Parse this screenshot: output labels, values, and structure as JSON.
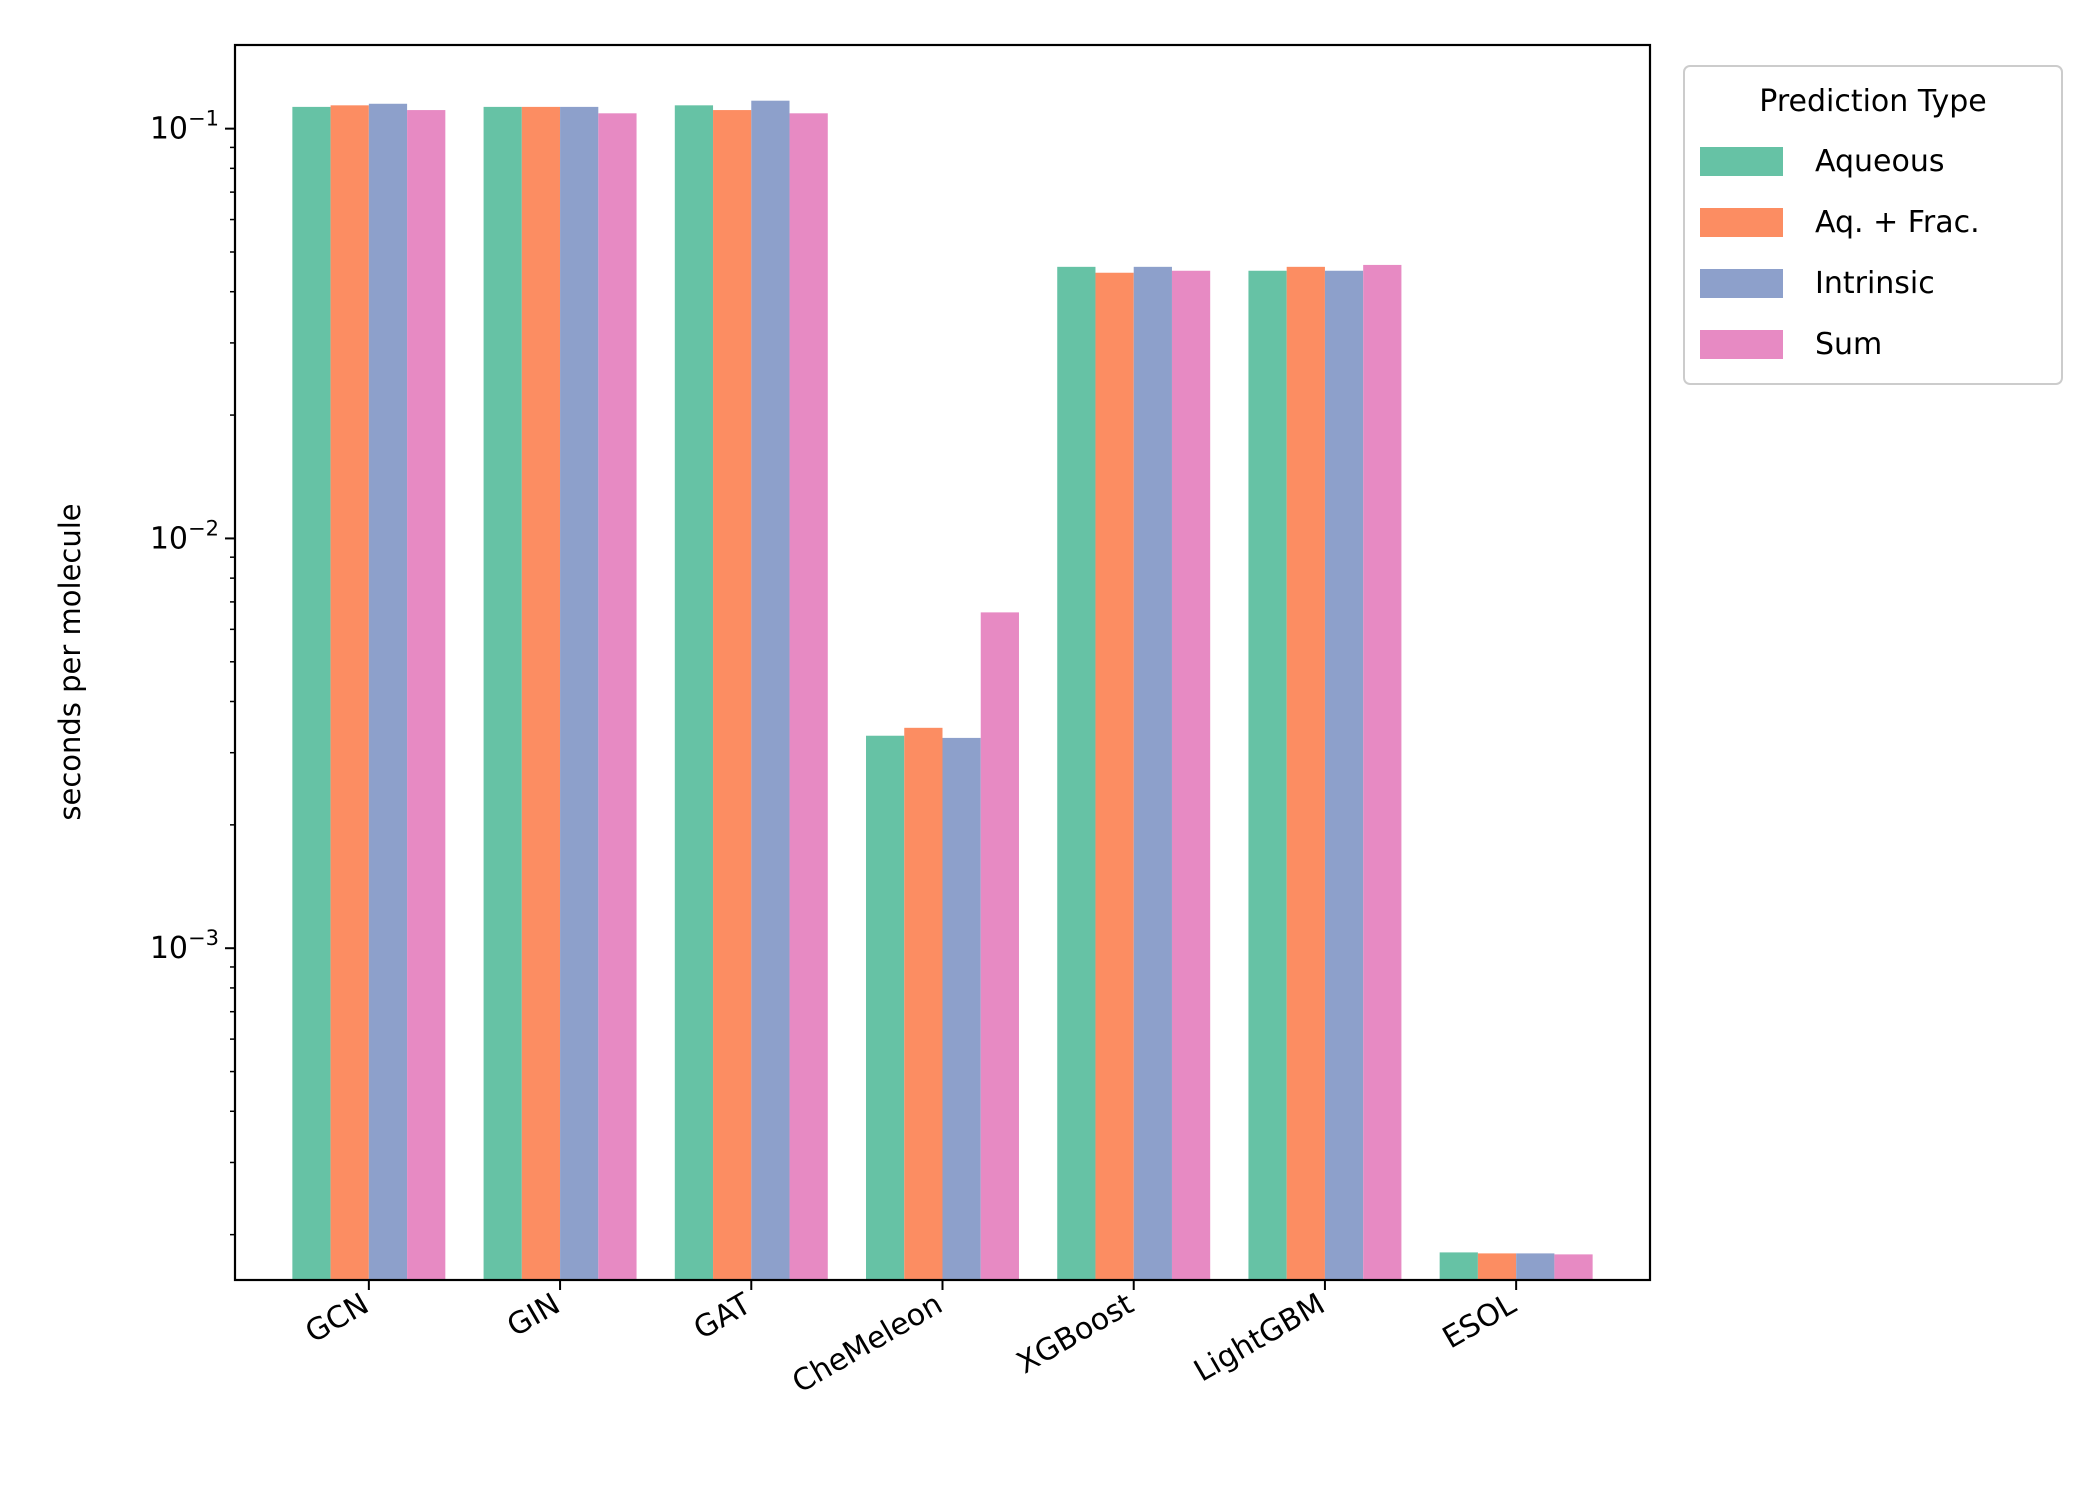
{
  "chart_data": {
    "type": "bar",
    "title": "",
    "xlabel": "",
    "ylabel": "seconds per molecule",
    "yscale": "log",
    "ylim": [
      0.000155,
      0.16
    ],
    "y_ticks": [
      {
        "value": 0.1,
        "base": "10",
        "exp": "−1"
      },
      {
        "value": 0.01,
        "base": "10",
        "exp": "−2"
      },
      {
        "value": 0.001,
        "base": "10",
        "exp": "−3"
      }
    ],
    "categories": [
      "GCN",
      "GIN",
      "GAT",
      "CheMeleon",
      "XGBoost",
      "LightGBM",
      "ESOL"
    ],
    "series": [
      {
        "name": "Aqueous",
        "color": "#66c2a5",
        "values": [
          0.113,
          0.113,
          0.114,
          0.0033,
          0.046,
          0.045,
          0.000181
        ]
      },
      {
        "name": "Aq. + Frac.",
        "color": "#fc8d62",
        "values": [
          0.114,
          0.113,
          0.111,
          0.00345,
          0.0445,
          0.046,
          0.00018
        ]
      },
      {
        "name": "Intrinsic",
        "color": "#8da0cb",
        "values": [
          0.115,
          0.113,
          0.117,
          0.00326,
          0.046,
          0.045,
          0.00018
        ]
      },
      {
        "name": "Sum",
        "color": "#e78ac3",
        "values": [
          0.111,
          0.109,
          0.109,
          0.0066,
          0.045,
          0.0465,
          0.000179
        ]
      }
    ],
    "legend": {
      "title": "Prediction Type",
      "position": "outside-top-right"
    },
    "grid": false
  }
}
